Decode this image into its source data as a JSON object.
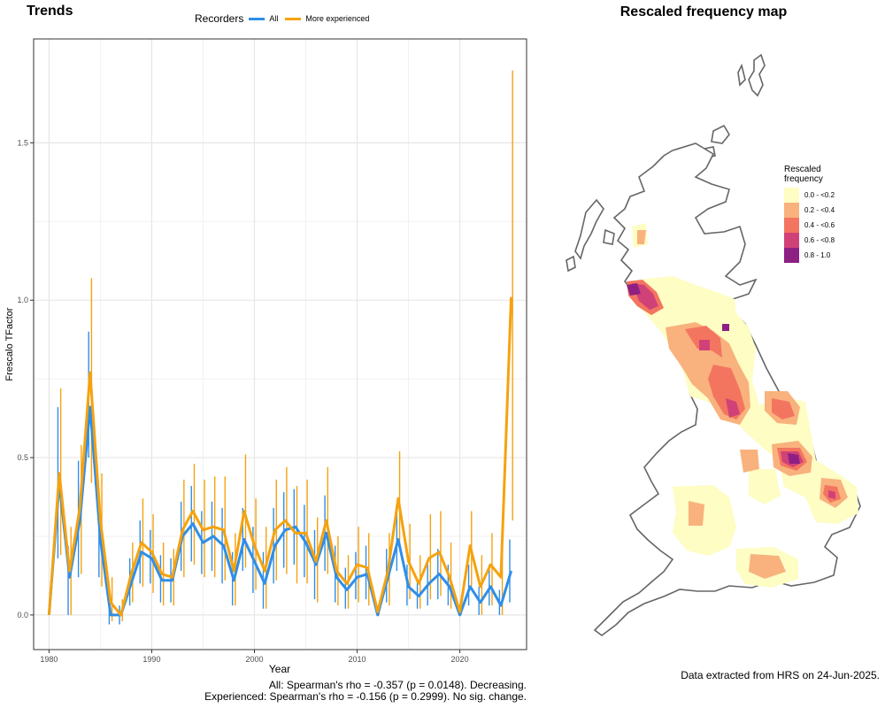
{
  "trends_title": "Trends",
  "map_title": "Rescaled frequency map",
  "legend": {
    "title": "Recorders",
    "items": [
      {
        "label": "All",
        "color": "#2f8ee8"
      },
      {
        "label": "More experienced",
        "color": "#f5a20f"
      }
    ]
  },
  "chart_data": {
    "type": "line",
    "xlabel": "Year",
    "ylabel": "Frescalo TFactor",
    "xlim": [
      1978.5,
      2026.5
    ],
    "ylim": [
      -0.11,
      1.83
    ],
    "x_ticks": [
      1980,
      1990,
      2000,
      2010,
      2020
    ],
    "y_ticks": [
      0.0,
      0.5,
      1.0,
      1.5
    ],
    "y_tick_labels": [
      "0.0",
      "0.5",
      "1.0",
      "1.5"
    ],
    "grid": true,
    "legend_position": "top",
    "x": [
      1980,
      1981,
      1982,
      1983,
      1984,
      1985,
      1986,
      1987,
      1988,
      1989,
      1990,
      1991,
      1992,
      1993,
      1994,
      1995,
      1996,
      1997,
      1998,
      1999,
      2000,
      2001,
      2002,
      2003,
      2004,
      2005,
      2006,
      2007,
      2008,
      2009,
      2010,
      2011,
      2012,
      2013,
      2014,
      2015,
      2016,
      2017,
      2018,
      2019,
      2020,
      2021,
      2022,
      2023,
      2024,
      2025
    ],
    "series": [
      {
        "name": "All",
        "color": "#2f8ee8",
        "values": [
          0.0,
          0.42,
          0.12,
          0.3,
          0.66,
          0.24,
          0.0,
          0.0,
          0.1,
          0.2,
          0.18,
          0.11,
          0.11,
          0.25,
          0.29,
          0.23,
          0.25,
          0.22,
          0.11,
          0.24,
          0.17,
          0.1,
          0.22,
          0.27,
          0.28,
          0.23,
          0.16,
          0.26,
          0.12,
          0.08,
          0.12,
          0.13,
          0.0,
          0.12,
          0.24,
          0.09,
          0.06,
          0.1,
          0.13,
          0.09,
          0.0,
          0.09,
          0.04,
          0.09,
          0.03,
          0.14
        ],
        "lower": [
          0.0,
          0.18,
          0.0,
          0.12,
          0.5,
          0.12,
          -0.03,
          -0.03,
          0.03,
          0.1,
          0.1,
          0.04,
          0.04,
          0.14,
          0.17,
          0.13,
          0.14,
          0.1,
          0.03,
          0.14,
          0.07,
          0.02,
          0.1,
          0.15,
          0.16,
          0.12,
          0.05,
          0.14,
          0.04,
          0.02,
          0.05,
          0.05,
          0.0,
          0.04,
          0.14,
          0.03,
          0.02,
          0.03,
          0.05,
          0.03,
          0.0,
          0.03,
          0.0,
          0.03,
          0.0,
          0.04
        ],
        "upper": [
          0.0,
          0.66,
          0.22,
          0.49,
          0.9,
          0.38,
          0.04,
          0.03,
          0.18,
          0.3,
          0.27,
          0.19,
          0.18,
          0.36,
          0.41,
          0.33,
          0.36,
          0.34,
          0.2,
          0.34,
          0.28,
          0.2,
          0.34,
          0.39,
          0.4,
          0.35,
          0.27,
          0.38,
          0.22,
          0.15,
          0.2,
          0.22,
          0.0,
          0.21,
          0.35,
          0.16,
          0.11,
          0.17,
          0.21,
          0.16,
          0.0,
          0.16,
          0.09,
          0.16,
          0.08,
          0.24
        ]
      },
      {
        "name": "More experienced",
        "color": "#f5a20f",
        "values": [
          0.0,
          0.45,
          0.14,
          0.34,
          0.77,
          0.3,
          0.04,
          0.0,
          0.13,
          0.23,
          0.2,
          0.13,
          0.12,
          0.27,
          0.33,
          0.27,
          0.28,
          0.27,
          0.14,
          0.33,
          0.22,
          0.14,
          0.27,
          0.3,
          0.26,
          0.26,
          0.17,
          0.3,
          0.14,
          0.1,
          0.16,
          0.15,
          0.01,
          0.14,
          0.37,
          0.17,
          0.1,
          0.18,
          0.2,
          0.12,
          0.01,
          0.22,
          0.09,
          0.16,
          0.12,
          1.01
        ],
        "lower": [
          0.0,
          0.19,
          0.0,
          0.13,
          0.42,
          0.09,
          -0.02,
          -0.02,
          0.04,
          0.09,
          0.07,
          0.03,
          0.03,
          0.12,
          0.16,
          0.12,
          0.12,
          0.11,
          0.03,
          0.15,
          0.08,
          0.02,
          0.11,
          0.13,
          0.1,
          0.1,
          0.04,
          0.13,
          0.03,
          0.02,
          0.04,
          0.03,
          0.0,
          0.03,
          0.22,
          0.05,
          0.02,
          0.05,
          0.06,
          0.02,
          0.0,
          0.09,
          0.0,
          0.03,
          0.0,
          0.3
        ],
        "upper": [
          0.0,
          0.72,
          0.28,
          0.54,
          1.07,
          0.45,
          0.12,
          0.05,
          0.23,
          0.37,
          0.32,
          0.23,
          0.21,
          0.43,
          0.48,
          0.43,
          0.44,
          0.44,
          0.26,
          0.51,
          0.37,
          0.28,
          0.43,
          0.47,
          0.41,
          0.43,
          0.31,
          0.47,
          0.25,
          0.19,
          0.28,
          0.26,
          0.03,
          0.26,
          0.52,
          0.29,
          0.19,
          0.32,
          0.33,
          0.23,
          0.02,
          0.33,
          0.19,
          0.26,
          0.25,
          1.73
        ]
      }
    ]
  },
  "stats": {
    "line1": "All: Spearman's rho = -0.357 (p = 0.0148). Decreasing.",
    "line2": "Experienced: Spearman's rho = -0.156 (p = 0.2999). No sig. change."
  },
  "map_legend": {
    "title_line1": "Rescaled",
    "title_line2": "frequency",
    "classes": [
      {
        "label": "0.0 - <0.2",
        "color": "#fdfdc4"
      },
      {
        "label": "0.2 - <0.4",
        "color": "#f9b27d"
      },
      {
        "label": "0.4 - <0.6",
        "color": "#f37560"
      },
      {
        "label": "0.6 - <0.8",
        "color": "#d04277"
      },
      {
        "label": "0.8 - 1.0",
        "color": "#8e1f83"
      }
    ]
  },
  "data_note": "Data extracted from HRS on 24-Jun-2025."
}
